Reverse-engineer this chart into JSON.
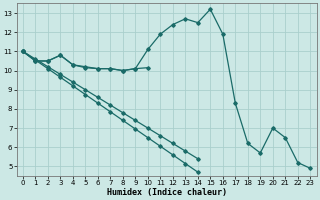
{
  "title": "",
  "xlabel": "Humidex (Indice chaleur)",
  "ylabel": "",
  "background_color": "#cce8e5",
  "grid_color": "#aacfcc",
  "line_color": "#1a6b68",
  "xlim": [
    -0.5,
    23.5
  ],
  "ylim": [
    4.5,
    13.5
  ],
  "xticks": [
    0,
    1,
    2,
    3,
    4,
    5,
    6,
    7,
    8,
    9,
    10,
    11,
    12,
    13,
    14,
    15,
    16,
    17,
    18,
    19,
    20,
    21,
    22,
    23
  ],
  "yticks": [
    5,
    6,
    7,
    8,
    9,
    10,
    11,
    12,
    13
  ],
  "line1_x": [
    0,
    1,
    2,
    3,
    4,
    5,
    6,
    7,
    8,
    9,
    10,
    11,
    12,
    13,
    14,
    15,
    16,
    17,
    18,
    19,
    20,
    21,
    22,
    23
  ],
  "line1_y": [
    11.0,
    10.5,
    10.5,
    10.8,
    10.3,
    10.2,
    10.1,
    10.1,
    10.0,
    10.1,
    11.1,
    11.9,
    12.4,
    12.7,
    12.5,
    13.2,
    11.9,
    8.3,
    6.2,
    5.7,
    7.0,
    6.5,
    5.2,
    4.9
  ],
  "line2_x": [
    0,
    1,
    2,
    3,
    4,
    5,
    6,
    7,
    8,
    9,
    10
  ],
  "line2_y": [
    11.0,
    10.5,
    10.5,
    10.8,
    10.3,
    10.15,
    10.1,
    10.1,
    10.0,
    10.1,
    10.15
  ],
  "line3_x": [
    0,
    1,
    2,
    3,
    4,
    5,
    6,
    7,
    8,
    9,
    10,
    11,
    12,
    13,
    14,
    15,
    16,
    17,
    18,
    19,
    20,
    21,
    22,
    23
  ],
  "line3_y": [
    11.0,
    10.55,
    10.1,
    9.65,
    9.2,
    8.75,
    8.3,
    7.85,
    7.4,
    6.95,
    6.5,
    6.05,
    5.6,
    5.15,
    4.7,
    null,
    null,
    null,
    null,
    null,
    null,
    null,
    null,
    null
  ],
  "line4_x": [
    0,
    1,
    2,
    3,
    4,
    5,
    6,
    7,
    8,
    9,
    10,
    11,
    12,
    13,
    14,
    15,
    16,
    17,
    18,
    19,
    20,
    21,
    22,
    23
  ],
  "line4_y": [
    11.0,
    10.6,
    10.2,
    9.8,
    9.4,
    9.0,
    8.6,
    8.2,
    7.8,
    7.4,
    7.0,
    6.6,
    6.2,
    5.8,
    5.4,
    null,
    null,
    null,
    null,
    null,
    null,
    null,
    null,
    null
  ]
}
